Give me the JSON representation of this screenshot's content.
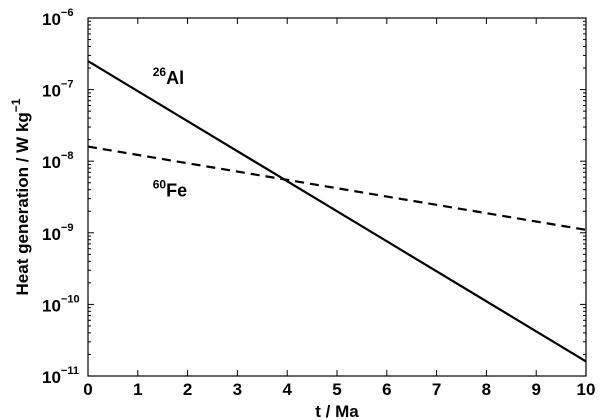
{
  "chart_data": {
    "type": "line",
    "xlabel": "t / Ma",
    "ylabel_main": "Heat generation / W kg",
    "ylabel_exp": "−1",
    "xlim": [
      0,
      10
    ],
    "ylim": [
      1e-11,
      1e-06
    ],
    "yscale": "log",
    "grid": false,
    "x_ticks": [
      0,
      1,
      2,
      3,
      4,
      5,
      6,
      7,
      8,
      9,
      10
    ],
    "y_ticks": [
      {
        "value": 1e-11,
        "base": "10",
        "exp": "−11"
      },
      {
        "value": 1e-10,
        "base": "10",
        "exp": "−10"
      },
      {
        "value": 1e-09,
        "base": "10",
        "exp": "−9"
      },
      {
        "value": 1e-08,
        "base": "10",
        "exp": "−8"
      },
      {
        "value": 1e-07,
        "base": "10",
        "exp": "−7"
      },
      {
        "value": 1e-06,
        "base": "10",
        "exp": "−6"
      }
    ],
    "series": [
      {
        "name": "26Al",
        "label_mass": "26",
        "label_element": "Al",
        "style": "solid",
        "color": "#000000",
        "x": [
          0,
          10
        ],
        "y": [
          2.5e-07,
          1.6e-11
        ],
        "label_at": {
          "x": 1.3,
          "y": 1.2e-07
        }
      },
      {
        "name": "60Fe",
        "label_mass": "60",
        "label_element": "Fe",
        "style": "dashed",
        "color": "#000000",
        "x": [
          0,
          10
        ],
        "y": [
          1.6e-08,
          1.1e-09
        ],
        "label_at": {
          "x": 1.3,
          "y": 3.2e-09
        }
      }
    ]
  }
}
